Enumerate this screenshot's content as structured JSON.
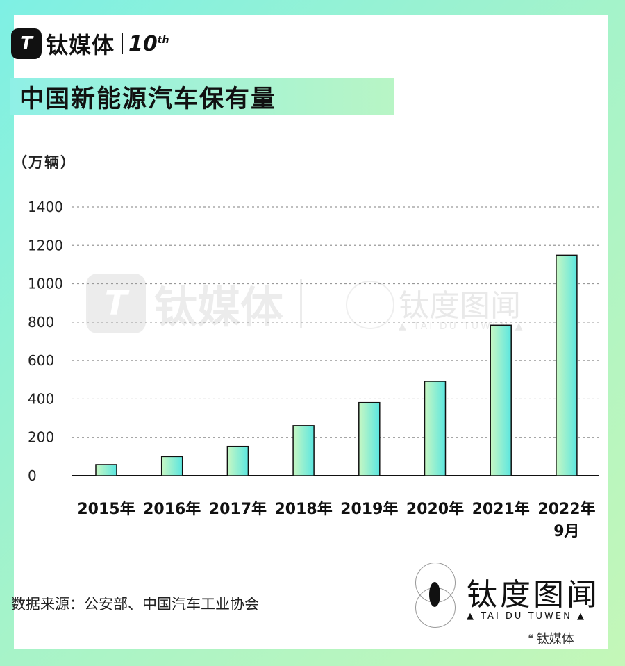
{
  "brand": {
    "logo_letter": "T",
    "name": "钛媒体",
    "anniversary": "10",
    "anniversary_sup": "th"
  },
  "title": "中国新能源汽车保有量",
  "unit_label": "（万辆）",
  "source_text": "数据来源：公安部、中国汽车工业协会",
  "watermark": {
    "name": "钛媒体",
    "tdtw_cn": "钛度图闻",
    "tdtw_en": "▲ TAI DU TUWEN ▲"
  },
  "tdtw_logo": {
    "cn": "钛度图闻",
    "en": "▲ TAI DU TUWEN ▲"
  },
  "wechat_label": "钛媒体",
  "colors": {
    "bar_start": "#c8f7c3",
    "bar_end": "#5be6e0",
    "bar_stroke": "#111111",
    "grid": "#999999"
  },
  "chart_data": {
    "type": "bar",
    "categories": [
      "2015年",
      "2016年",
      "2017年",
      "2018年",
      "2019年",
      "2020年",
      "2021年",
      "2022年\n9月"
    ],
    "values": [
      58,
      100,
      153,
      261,
      381,
      492,
      784,
      1149
    ],
    "ylabel": "（万辆）",
    "ylim": [
      0,
      1400
    ],
    "yticks": [
      0,
      200,
      400,
      600,
      800,
      1000,
      1200,
      1400
    ],
    "grid": true
  }
}
